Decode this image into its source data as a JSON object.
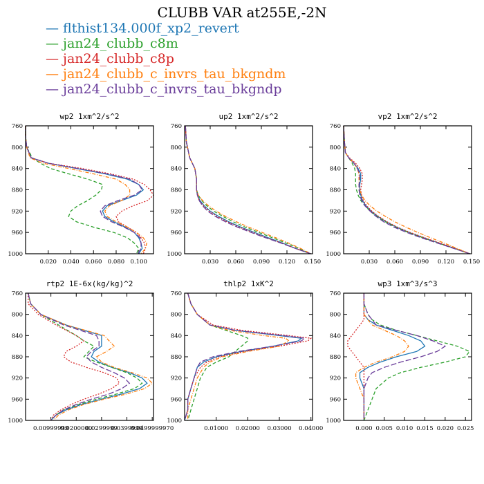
{
  "title": "CLUBB VAR at255E,-2N",
  "legend": [
    {
      "name": "flthist134.000f_xp2_revert",
      "color": "#1f77b4",
      "dash": ""
    },
    {
      "name": "jan24_clubb_c8m",
      "color": "#2ca02c",
      "dash": "5,3"
    },
    {
      "name": "jan24_clubb_c8p",
      "color": "#d62728",
      "dash": "2,2"
    },
    {
      "name": "jan24_clubb_c_invrs_tau_bkgndm",
      "color": "#ff7f0e",
      "dash": "5,2,1,2"
    },
    {
      "name": "jan24_clubb_c_invrs_tau_bkgndp",
      "color": "#6a3d9a",
      "dash": "8,3"
    }
  ],
  "chart_data": [
    {
      "type": "line",
      "title": "wp2   1xm^2/s^2",
      "xlim": [
        0.0,
        0.113
      ],
      "xticks": [
        0.02,
        0.04,
        0.06,
        0.08,
        0.1
      ],
      "xticklabels": [
        "0.020",
        "0.040",
        "0.060",
        "0.080",
        "0.100"
      ],
      "ylim": [
        760,
        1000
      ],
      "yticks": [
        760,
        800,
        840,
        880,
        920,
        960,
        1000
      ],
      "y": [
        760,
        780,
        800,
        820,
        830,
        840,
        850,
        860,
        870,
        880,
        890,
        900,
        910,
        920,
        930,
        940,
        950,
        960,
        970,
        980,
        990,
        1000
      ],
      "series": [
        {
          "values": [
            0,
            0,
            0.001,
            0.005,
            0.02,
            0.045,
            0.07,
            0.09,
            0.1,
            0.104,
            0.098,
            0.085,
            0.072,
            0.068,
            0.07,
            0.078,
            0.088,
            0.096,
            0.1,
            0.102,
            0.103,
            0.1
          ]
        },
        {
          "values": [
            0,
            0,
            0.001,
            0.006,
            0.013,
            0.022,
            0.038,
            0.055,
            0.068,
            0.067,
            0.062,
            0.055,
            0.046,
            0.04,
            0.038,
            0.045,
            0.06,
            0.078,
            0.09,
            0.096,
            0.1,
            0.098
          ]
        },
        {
          "values": [
            0,
            0,
            0.001,
            0.005,
            0.02,
            0.05,
            0.075,
            0.095,
            0.105,
            0.11,
            0.113,
            0.108,
            0.095,
            0.085,
            0.08,
            0.082,
            0.09,
            0.098,
            0.102,
            0.105,
            0.106,
            0.104
          ]
        },
        {
          "values": [
            0,
            0,
            0.001,
            0.004,
            0.015,
            0.038,
            0.06,
            0.08,
            0.088,
            0.092,
            0.092,
            0.085,
            0.074,
            0.07,
            0.072,
            0.08,
            0.09,
            0.098,
            0.104,
            0.107,
            0.106,
            0.102
          ]
        },
        {
          "values": [
            0,
            0,
            0.001,
            0.005,
            0.02,
            0.046,
            0.072,
            0.092,
            0.1,
            0.103,
            0.096,
            0.082,
            0.07,
            0.066,
            0.068,
            0.076,
            0.087,
            0.096,
            0.101,
            0.102,
            0.102,
            0.099
          ]
        }
      ]
    },
    {
      "type": "line",
      "title": "up2   1xm^2/s^2",
      "xlim": [
        0.0,
        0.15
      ],
      "xticks": [
        0.03,
        0.06,
        0.09,
        0.12,
        0.15
      ],
      "xticklabels": [
        "0.030",
        "0.060",
        "0.090",
        "0.120",
        "0.150"
      ],
      "ylim": [
        760,
        1000
      ],
      "yticks": [
        760,
        800,
        840,
        880,
        920,
        960,
        1000
      ],
      "y": [
        760,
        790,
        820,
        840,
        860,
        880,
        890,
        900,
        910,
        920,
        930,
        940,
        950,
        960,
        970,
        980,
        990,
        1000
      ],
      "series": [
        {
          "values": [
            0.001,
            0.002,
            0.006,
            0.012,
            0.014,
            0.014,
            0.015,
            0.018,
            0.023,
            0.03,
            0.04,
            0.052,
            0.066,
            0.082,
            0.098,
            0.115,
            0.13,
            0.148
          ]
        },
        {
          "values": [
            0.001,
            0.002,
            0.006,
            0.012,
            0.014,
            0.014,
            0.016,
            0.02,
            0.026,
            0.034,
            0.045,
            0.057,
            0.071,
            0.087,
            0.103,
            0.119,
            0.134,
            0.148
          ]
        },
        {
          "values": [
            0.001,
            0.002,
            0.006,
            0.012,
            0.014,
            0.014,
            0.015,
            0.017,
            0.022,
            0.029,
            0.038,
            0.05,
            0.064,
            0.08,
            0.096,
            0.114,
            0.13,
            0.148
          ]
        },
        {
          "values": [
            0.001,
            0.002,
            0.006,
            0.012,
            0.014,
            0.014,
            0.016,
            0.021,
            0.028,
            0.037,
            0.048,
            0.061,
            0.075,
            0.091,
            0.107,
            0.122,
            0.136,
            0.148
          ]
        },
        {
          "values": [
            0.001,
            0.002,
            0.006,
            0.012,
            0.014,
            0.014,
            0.015,
            0.017,
            0.021,
            0.027,
            0.036,
            0.048,
            0.062,
            0.078,
            0.095,
            0.113,
            0.13,
            0.148
          ]
        }
      ]
    },
    {
      "type": "line",
      "title": "vp2   1xm^2/s^2",
      "xlim": [
        0.0,
        0.15
      ],
      "xticks": [
        0.03,
        0.06,
        0.09,
        0.12,
        0.15
      ],
      "xticklabels": [
        "0.030",
        "0.060",
        "0.090",
        "0.120",
        "0.150"
      ],
      "ylim": [
        760,
        1000
      ],
      "yticks": [
        760,
        800,
        840,
        880,
        920,
        960,
        1000
      ],
      "y": [
        760,
        790,
        810,
        820,
        830,
        840,
        850,
        860,
        870,
        880,
        890,
        900,
        910,
        920,
        930,
        940,
        950,
        960,
        970,
        980,
        990,
        1000
      ],
      "series": [
        {
          "values": [
            0.0,
            0.001,
            0.002,
            0.006,
            0.012,
            0.017,
            0.02,
            0.02,
            0.019,
            0.019,
            0.02,
            0.022,
            0.026,
            0.032,
            0.04,
            0.05,
            0.062,
            0.077,
            0.094,
            0.112,
            0.13,
            0.148
          ]
        },
        {
          "values": [
            0.0,
            0.001,
            0.002,
            0.006,
            0.01,
            0.013,
            0.014,
            0.014,
            0.014,
            0.015,
            0.017,
            0.02,
            0.025,
            0.031,
            0.039,
            0.049,
            0.061,
            0.076,
            0.093,
            0.111,
            0.13,
            0.148
          ]
        },
        {
          "values": [
            0.0,
            0.001,
            0.002,
            0.007,
            0.014,
            0.019,
            0.022,
            0.022,
            0.021,
            0.02,
            0.021,
            0.023,
            0.027,
            0.033,
            0.041,
            0.051,
            0.063,
            0.078,
            0.095,
            0.113,
            0.131,
            0.148
          ]
        },
        {
          "values": [
            0.0,
            0.001,
            0.002,
            0.006,
            0.012,
            0.016,
            0.018,
            0.018,
            0.018,
            0.019,
            0.021,
            0.025,
            0.031,
            0.039,
            0.049,
            0.06,
            0.073,
            0.087,
            0.102,
            0.118,
            0.133,
            0.148
          ]
        },
        {
          "values": [
            0.0,
            0.001,
            0.002,
            0.006,
            0.012,
            0.016,
            0.019,
            0.019,
            0.018,
            0.018,
            0.019,
            0.021,
            0.025,
            0.031,
            0.038,
            0.047,
            0.059,
            0.074,
            0.091,
            0.11,
            0.129,
            0.148
          ]
        }
      ]
    },
    {
      "type": "line",
      "title": "rtp2   1E-6x(kg/kg)^2",
      "xlim": [
        0.0,
        0.0505
      ],
      "xticks": [
        0.01,
        0.02,
        0.03,
        0.04,
        0.05
      ],
      "xticklabels": [
        "0.00999999",
        "0.0200000",
        "0.0299999",
        "0.0399999",
        "0.0499999970"
      ],
      "ylim": [
        760,
        1000
      ],
      "yticks": [
        760,
        800,
        840,
        880,
        920,
        960,
        1000
      ],
      "y": [
        760,
        780,
        800,
        820,
        840,
        850,
        860,
        870,
        880,
        890,
        900,
        910,
        920,
        930,
        940,
        950,
        960,
        970,
        980,
        990,
        1000
      ],
      "series": [
        {
          "values": [
            0.001,
            0.002,
            0.006,
            0.016,
            0.03,
            0.03,
            0.03,
            0.027,
            0.026,
            0.029,
            0.034,
            0.041,
            0.046,
            0.048,
            0.045,
            0.038,
            0.03,
            0.022,
            0.016,
            0.012,
            0.01
          ]
        },
        {
          "values": [
            0.001,
            0.002,
            0.006,
            0.013,
            0.02,
            0.023,
            0.027,
            0.025,
            0.023,
            0.028,
            0.034,
            0.04,
            0.044,
            0.046,
            0.043,
            0.036,
            0.028,
            0.021,
            0.015,
            0.012,
            0.01
          ]
        },
        {
          "values": [
            0.001,
            0.001,
            0.005,
            0.012,
            0.02,
            0.023,
            0.02,
            0.016,
            0.015,
            0.018,
            0.024,
            0.031,
            0.036,
            0.037,
            0.034,
            0.029,
            0.023,
            0.018,
            0.014,
            0.011,
            0.01
          ]
        },
        {
          "values": [
            0.001,
            0.002,
            0.006,
            0.016,
            0.031,
            0.033,
            0.035,
            0.032,
            0.028,
            0.03,
            0.035,
            0.042,
            0.048,
            0.05,
            0.047,
            0.04,
            0.031,
            0.023,
            0.017,
            0.013,
            0.011
          ]
        },
        {
          "values": [
            0.001,
            0.002,
            0.006,
            0.015,
            0.028,
            0.029,
            0.029,
            0.026,
            0.024,
            0.026,
            0.03,
            0.035,
            0.039,
            0.041,
            0.038,
            0.033,
            0.026,
            0.02,
            0.015,
            0.012,
            0.01
          ]
        }
      ]
    },
    {
      "type": "line",
      "title": "thlp2   1xK^2",
      "xlim": [
        0.0,
        0.0405
      ],
      "xticks": [
        0.01,
        0.02,
        0.03,
        0.04
      ],
      "xticklabels": [
        "0.01000",
        "0.02000",
        "0.03000",
        "0.04000"
      ],
      "ylim": [
        760,
        1000
      ],
      "yticks": [
        760,
        800,
        840,
        880,
        920,
        960,
        1000
      ],
      "y": [
        760,
        780,
        800,
        820,
        830,
        840,
        845,
        850,
        860,
        870,
        880,
        890,
        900,
        920,
        940,
        960,
        980,
        1000
      ],
      "series": [
        {
          "values": [
            0.001,
            0.002,
            0.004,
            0.008,
            0.016,
            0.03,
            0.037,
            0.036,
            0.028,
            0.018,
            0.01,
            0.006,
            0.004,
            0.003,
            0.002,
            0.001,
            0.001,
            0.0
          ]
        },
        {
          "values": [
            0.001,
            0.002,
            0.004,
            0.008,
            0.013,
            0.018,
            0.02,
            0.02,
            0.018,
            0.016,
            0.014,
            0.01,
            0.007,
            0.005,
            0.004,
            0.003,
            0.002,
            0.001
          ]
        },
        {
          "values": [
            0.001,
            0.002,
            0.004,
            0.009,
            0.018,
            0.033,
            0.04,
            0.039,
            0.03,
            0.019,
            0.011,
            0.007,
            0.005,
            0.003,
            0.002,
            0.001,
            0.001,
            0.0
          ]
        },
        {
          "values": [
            0.001,
            0.002,
            0.004,
            0.008,
            0.014,
            0.025,
            0.032,
            0.033,
            0.03,
            0.02,
            0.012,
            0.008,
            0.006,
            0.004,
            0.003,
            0.002,
            0.001,
            0.001
          ]
        },
        {
          "values": [
            0.001,
            0.002,
            0.004,
            0.008,
            0.016,
            0.031,
            0.038,
            0.037,
            0.028,
            0.017,
            0.009,
            0.005,
            0.004,
            0.003,
            0.002,
            0.001,
            0.001,
            0.0
          ]
        }
      ]
    },
    {
      "type": "line",
      "title": "wp3   1xm^3/s^3",
      "xlim": [
        -0.005,
        0.0265
      ],
      "xticks": [
        0.0,
        0.005,
        0.01,
        0.015,
        0.02,
        0.025
      ],
      "xticklabels": [
        "0.000",
        "0.005",
        "0.010",
        "0.015",
        "0.020",
        "0.025"
      ],
      "ylim": [
        760,
        1000
      ],
      "yticks": [
        760,
        800,
        840,
        880,
        920,
        960,
        1000
      ],
      "y": [
        760,
        780,
        800,
        810,
        820,
        830,
        840,
        850,
        860,
        870,
        880,
        890,
        900,
        910,
        920,
        940,
        960,
        980,
        1000
      ],
      "series": [
        {
          "values": [
            0.0,
            0.0,
            0.0,
            0.001,
            0.003,
            0.007,
            0.011,
            0.014,
            0.015,
            0.013,
            0.008,
            0.004,
            0.001,
            -0.001,
            -0.001,
            0.0,
            0.0,
            0.0,
            0.0
          ]
        },
        {
          "values": [
            0.0,
            0.0,
            0.001,
            0.002,
            0.004,
            0.008,
            0.013,
            0.018,
            0.023,
            0.026,
            0.025,
            0.02,
            0.014,
            0.009,
            0.006,
            0.003,
            0.002,
            0.001,
            0.0
          ]
        },
        {
          "values": [
            0.0,
            0.0,
            0.0,
            0.0,
            -0.001,
            -0.002,
            -0.003,
            -0.004,
            -0.004,
            -0.003,
            -0.002,
            -0.001,
            0.0,
            0.0,
            0.0,
            0.0,
            0.0,
            0.0,
            0.0
          ]
        },
        {
          "values": [
            0.0,
            0.0,
            0.0,
            0.001,
            0.002,
            0.005,
            0.008,
            0.01,
            0.011,
            0.01,
            0.007,
            0.003,
            0.0,
            -0.002,
            -0.002,
            -0.001,
            0.0,
            0.0,
            0.0
          ]
        },
        {
          "values": [
            0.0,
            0.0,
            0.001,
            0.002,
            0.003,
            0.008,
            0.013,
            0.017,
            0.02,
            0.018,
            0.014,
            0.009,
            0.005,
            0.002,
            0.001,
            0.0,
            0.0,
            0.0,
            0.0
          ]
        }
      ]
    }
  ]
}
